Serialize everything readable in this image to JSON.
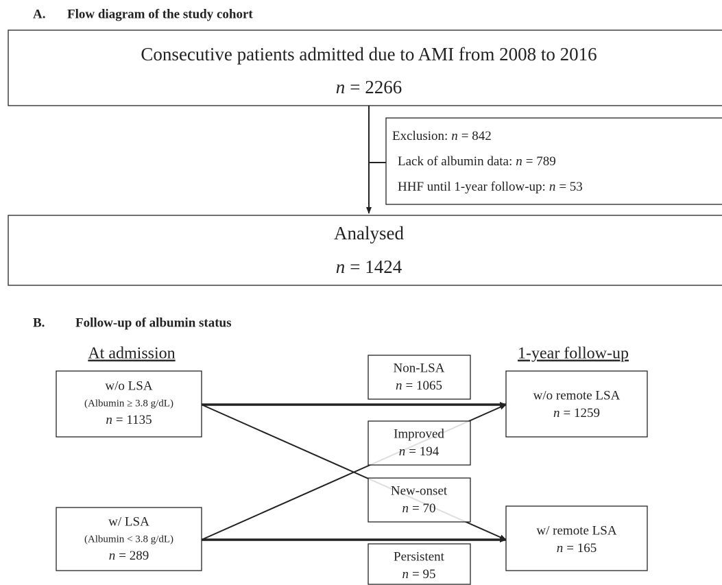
{
  "section_a": {
    "label": "A.",
    "title": "Flow diagram of the study cohort"
  },
  "enrolled": {
    "text": "Consecutive patients admitted due to AMI from 2008 to 2016",
    "count": {
      "symbol": "n",
      "value": "= 2266"
    }
  },
  "exclusion": {
    "total": {
      "label": "Exclusion:",
      "symbol": "n",
      "value": "= 842"
    },
    "reasons": [
      {
        "label": "Lack of albumin data:",
        "symbol": "n",
        "value": "= 789"
      },
      {
        "label": "HHF until 1-year follow-up:",
        "symbol": "n",
        "value": "= 53"
      }
    ]
  },
  "analysed": {
    "text": "Analysed",
    "count": {
      "symbol": "n",
      "value": "= 1424"
    }
  },
  "section_b": {
    "label": "B.",
    "title": "Follow-up of albumin status"
  },
  "admission": {
    "heading": "At admission",
    "groups": [
      {
        "name": "w/o LSA",
        "criterion": "(Albumin ≥ 3.8 g/dL)",
        "count": {
          "symbol": "n",
          "value": "= 1135"
        }
      },
      {
        "name": "w/ LSA",
        "criterion": "(Albumin < 3.8 g/dL)",
        "count": {
          "symbol": "n",
          "value": "= 289"
        }
      }
    ]
  },
  "follow_up": {
    "heading": "1-year follow-up",
    "groups": [
      {
        "name": "w/o remote LSA",
        "count": {
          "symbol": "n",
          "value": "= 1259"
        }
      },
      {
        "name": "w/ remote LSA",
        "count": {
          "symbol": "n",
          "value": "= 165"
        }
      }
    ]
  },
  "transitions": [
    {
      "name": "Non-LSA",
      "count": {
        "symbol": "n",
        "value": "= 1065"
      }
    },
    {
      "name": "Improved",
      "count": {
        "symbol": "n",
        "value": "= 194"
      }
    },
    {
      "name": "New-onset",
      "count": {
        "symbol": "n",
        "value": "= 70"
      }
    },
    {
      "name": "Persistent",
      "count": {
        "symbol": "n",
        "value": "= 95"
      }
    }
  ]
}
